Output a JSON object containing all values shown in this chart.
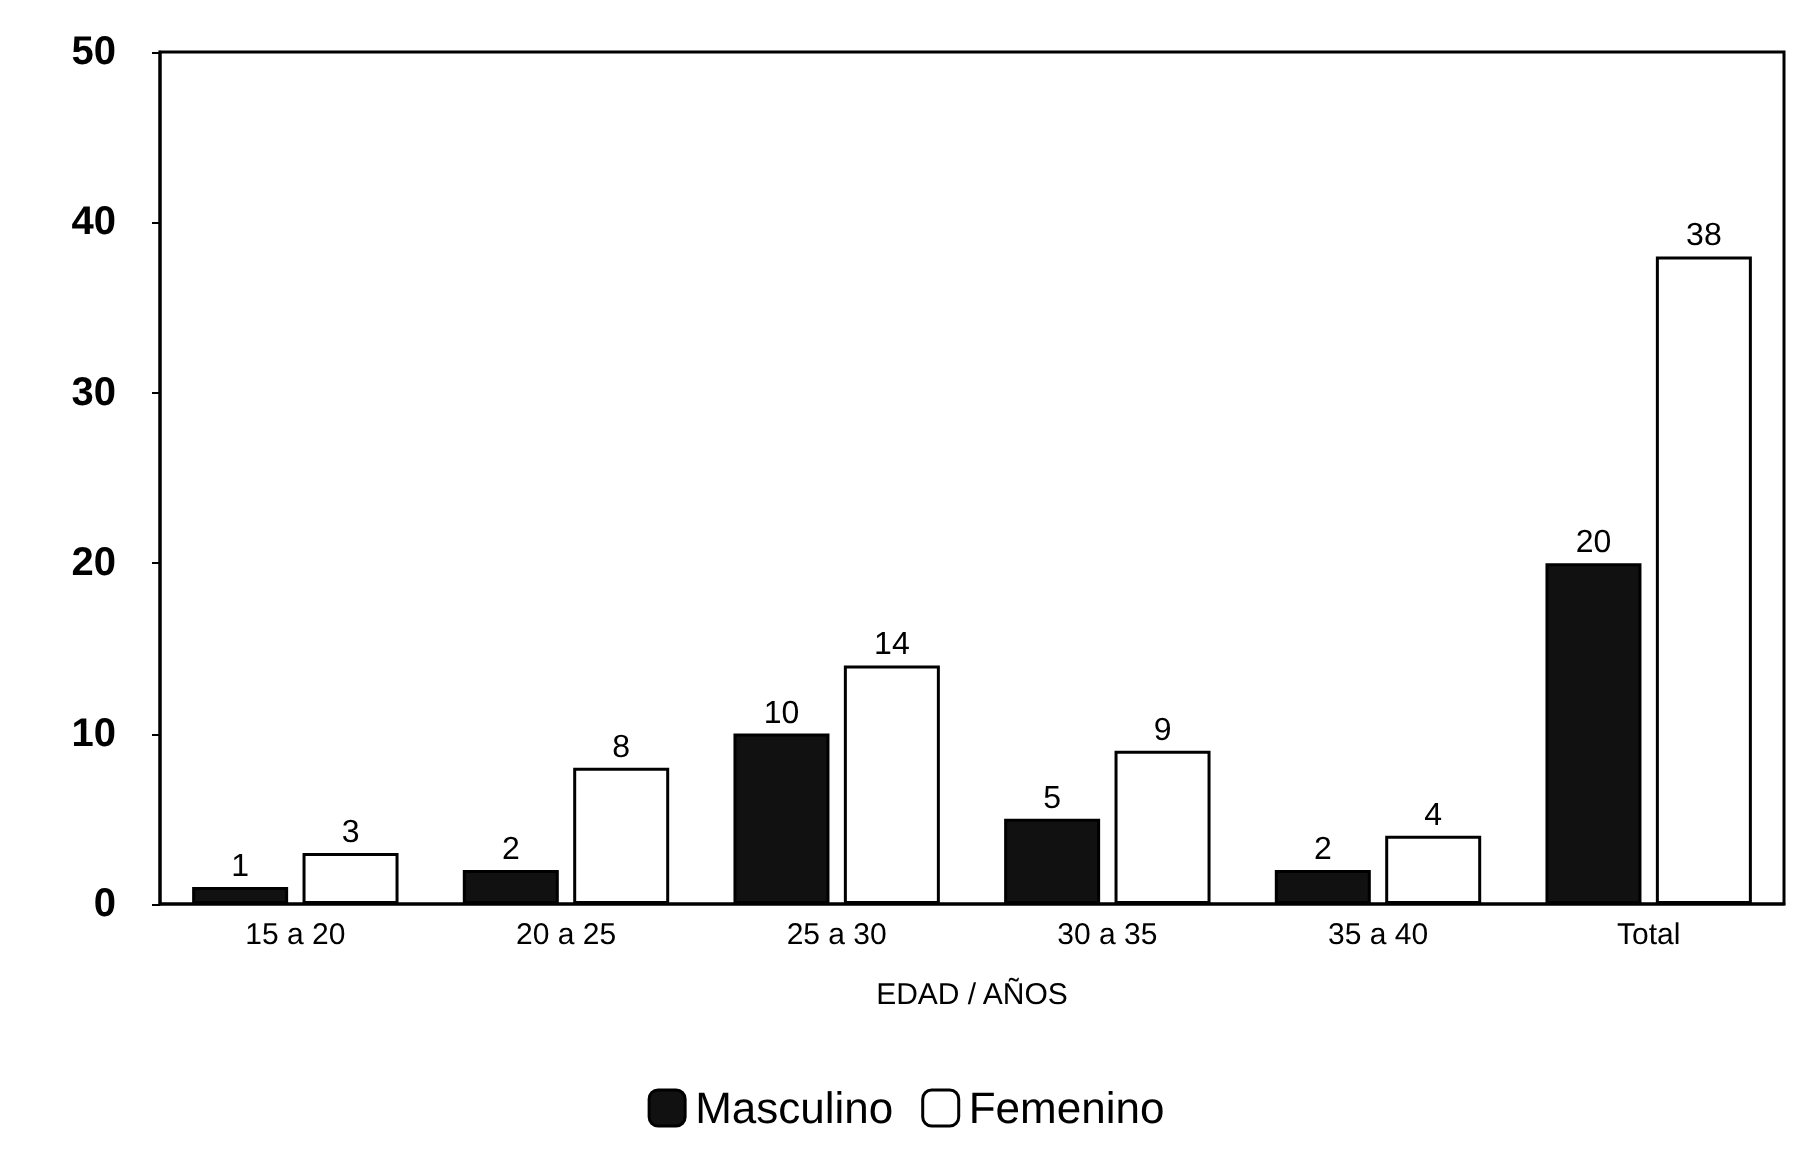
{
  "chart_data": {
    "type": "bar",
    "xlabel": "EDAD / AÑOS",
    "categories": [
      "15 a 20",
      "20 a 25",
      "25 a 30",
      "30 a 35",
      "35 a 40",
      "Total"
    ],
    "series": [
      {
        "name": "Masculino",
        "color": "#111111",
        "values": [
          1,
          2,
          10,
          5,
          2,
          20
        ]
      },
      {
        "name": "Femenino",
        "color": "#ffffff",
        "values": [
          3,
          8,
          14,
          9,
          4,
          38
        ]
      }
    ],
    "ylim": [
      0,
      50
    ],
    "yticks": [
      0,
      10,
      20,
      30,
      40,
      50
    ],
    "grid": false,
    "legend": "bottom",
    "data_labels": true
  }
}
